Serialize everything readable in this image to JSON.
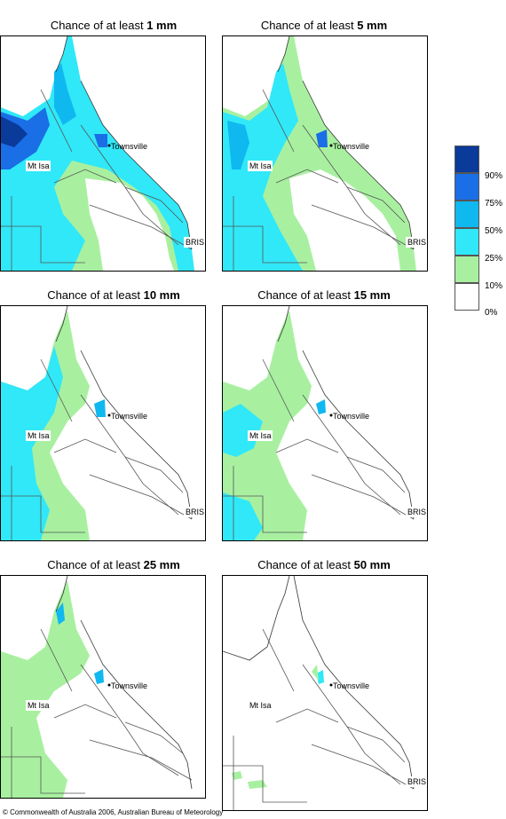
{
  "panels": [
    {
      "prefix": "Chance of at least ",
      "amount": "1 mm"
    },
    {
      "prefix": "Chance of at least ",
      "amount": "5 mm"
    },
    {
      "prefix": "Chance of at least ",
      "amount": "10 mm"
    },
    {
      "prefix": "Chance of at least ",
      "amount": "15 mm"
    },
    {
      "prefix": "Chance of at least ",
      "amount": "25 mm"
    },
    {
      "prefix": "Chance of at least ",
      "amount": "50 mm"
    }
  ],
  "places": {
    "townsville": "Townsville",
    "mtisa": "Mt Isa",
    "bris": "BRIS"
  },
  "legend": {
    "labels": [
      "90%",
      "75%",
      "50%",
      "25%",
      "10%",
      "0%"
    ],
    "colors": [
      "#0a3a9a",
      "#1a6ee6",
      "#10b8f0",
      "#30e8f8",
      "#a8f0a0",
      "#ffffff"
    ]
  },
  "footer": "© Commonwealth of Australia 2006, Australian Bureau of Meteorology"
}
